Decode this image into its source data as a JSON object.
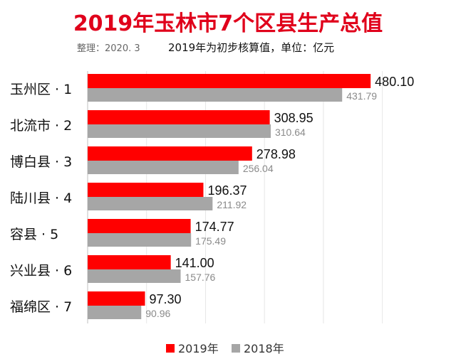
{
  "title": "2019年玉林市7个区县生产总值",
  "subtitle_note": "整理：2020. 3",
  "subtitle_unit": "2019年为初步核算值，单位：亿元",
  "colors": {
    "title": "#e0001b",
    "series_2019": "#ff0000",
    "series_2018": "#a6a6a6"
  },
  "chart_data": {
    "type": "bar",
    "orientation": "horizontal",
    "categories": [
      "玉州区 · 1",
      "北流市 · 2",
      "博白县 · 3",
      "陆川县 · 4",
      "容县 · 5",
      "兴业县 · 6",
      "福绵区 · 7"
    ],
    "series": [
      {
        "name": "2019年",
        "values": [
          480.1,
          308.95,
          278.98,
          196.37,
          174.77,
          141.0,
          97.3
        ],
        "labels": [
          "480.10",
          "308.95",
          "278.98",
          "196.37",
          "174.77",
          "141.00",
          "97.30"
        ]
      },
      {
        "name": "2018年",
        "values": [
          431.79,
          310.64,
          256.04,
          211.92,
          175.49,
          157.76,
          90.96
        ],
        "labels": [
          "431.79",
          "310.64",
          "256.04",
          "211.92",
          "175.49",
          "157.76",
          "90.96"
        ]
      }
    ],
    "xlim": [
      0,
      500
    ],
    "grid": true,
    "legend_position": "bottom"
  }
}
